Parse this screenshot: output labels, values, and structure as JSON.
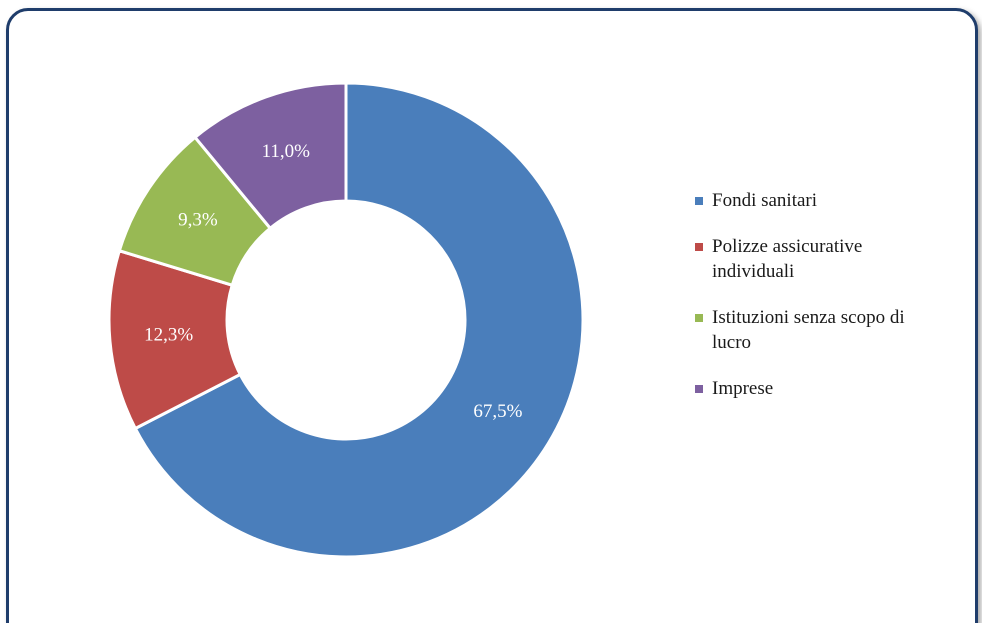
{
  "chart_data": {
    "type": "donut",
    "categories": [
      "Fondi sanitari",
      "Polizze assicurative individuali",
      "Istituzioni senza scopo di lucro",
      "Imprese"
    ],
    "values": [
      67.5,
      12.3,
      9.3,
      11.0
    ],
    "value_labels": [
      "67,5%",
      "12,3%",
      "9,3%",
      "11,0%"
    ],
    "colors": [
      "#4a7ebb",
      "#be4b48",
      "#98b954",
      "#7d60a0"
    ],
    "legend": "right"
  }
}
